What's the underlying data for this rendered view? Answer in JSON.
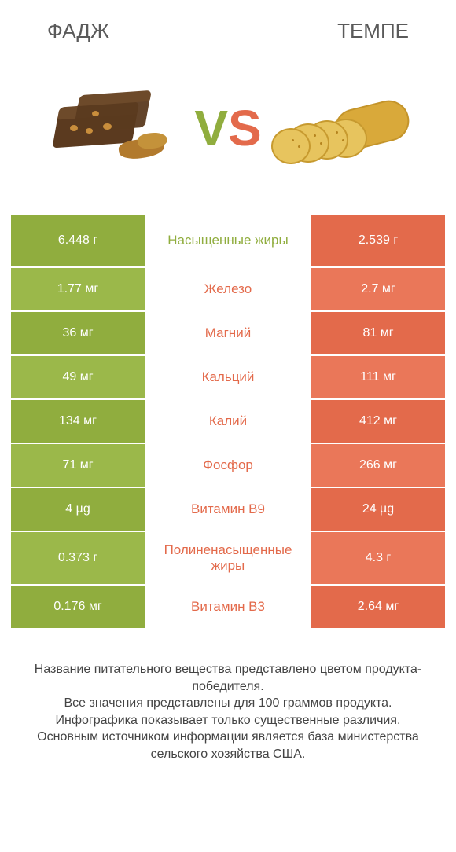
{
  "colors": {
    "green": "#90ad3e",
    "green_alt": "#9bb84a",
    "orange": "#e36a4b",
    "orange_alt": "#ea7759",
    "mid_orange_text": "#e36a4b",
    "mid_green_text": "#90ad3e",
    "text": "#5a5a5a",
    "white": "#ffffff",
    "vs_v": "#90ad3e",
    "vs_s": "#e36a4b"
  },
  "header": {
    "left": "ФАДЖ",
    "right": "ТЕМПЕ"
  },
  "vs": {
    "v": "V",
    "s": "S"
  },
  "rows": [
    {
      "left": "6.448 г",
      "mid": "Насыщенные жиры",
      "right": "2.539 г",
      "winner": "left",
      "tall": true
    },
    {
      "left": "1.77 мг",
      "mid": "Железо",
      "right": "2.7 мг",
      "winner": "right",
      "tall": false
    },
    {
      "left": "36 мг",
      "mid": "Магний",
      "right": "81 мг",
      "winner": "right",
      "tall": false
    },
    {
      "left": "49 мг",
      "mid": "Кальций",
      "right": "111 мг",
      "winner": "right",
      "tall": false
    },
    {
      "left": "134 мг",
      "mid": "Калий",
      "right": "412 мг",
      "winner": "right",
      "tall": false
    },
    {
      "left": "71 мг",
      "mid": "Фосфор",
      "right": "266 мг",
      "winner": "right",
      "tall": false
    },
    {
      "left": "4 µg",
      "mid": "Витамин B9",
      "right": "24 µg",
      "winner": "right",
      "tall": false
    },
    {
      "left": "0.373 г",
      "mid": "Полиненасыщенные жиры",
      "right": "4.3 г",
      "winner": "right",
      "tall": true
    },
    {
      "left": "0.176 мг",
      "mid": "Витамин B3",
      "right": "2.64 мг",
      "winner": "right",
      "tall": false
    }
  ],
  "footer": {
    "line1": "Название питательного вещества представлено цветом продукта-победителя.",
    "line2": "Все значения представлены для 100 граммов продукта.",
    "line3": "Инфографика показывает только существенные различия.",
    "line4": "Основным источником информации является база министерства сельского хозяйства США."
  }
}
